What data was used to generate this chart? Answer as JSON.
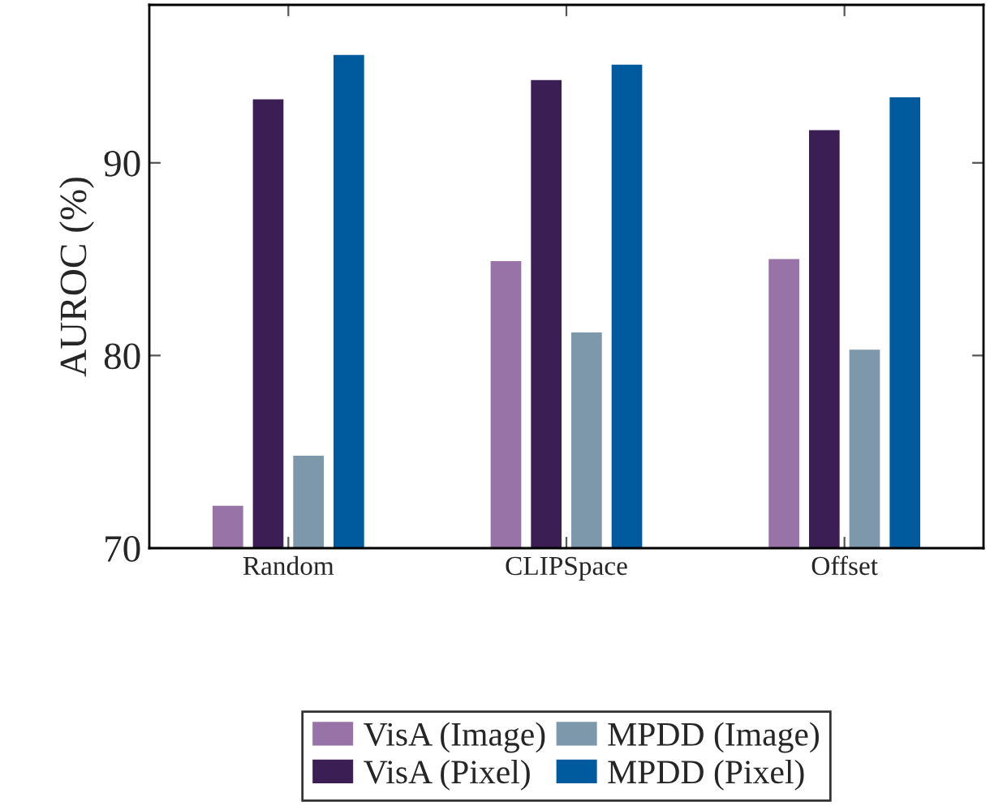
{
  "chart_data": {
    "type": "bar",
    "ylabel": "AUROC (%)",
    "categories": [
      "Random",
      "CLIPSpace",
      "Offset"
    ],
    "series": [
      {
        "name": "VisA (Image)",
        "color": "#9873a8",
        "values": [
          72.2,
          84.9,
          85.0
        ]
      },
      {
        "name": "VisA (Pixel)",
        "color": "#3b1f54",
        "values": [
          93.3,
          94.3,
          91.7
        ]
      },
      {
        "name": "MPDD (Image)",
        "color": "#7d97ab",
        "values": [
          74.8,
          81.2,
          80.3
        ]
      },
      {
        "name": "MPDD (Pixel)",
        "color": "#005a9e",
        "values": [
          95.6,
          95.1,
          93.4
        ]
      }
    ],
    "ylim": [
      70,
      98.2
    ],
    "yticks": [
      70,
      80,
      90
    ],
    "grid": false,
    "legend": "bottom"
  }
}
